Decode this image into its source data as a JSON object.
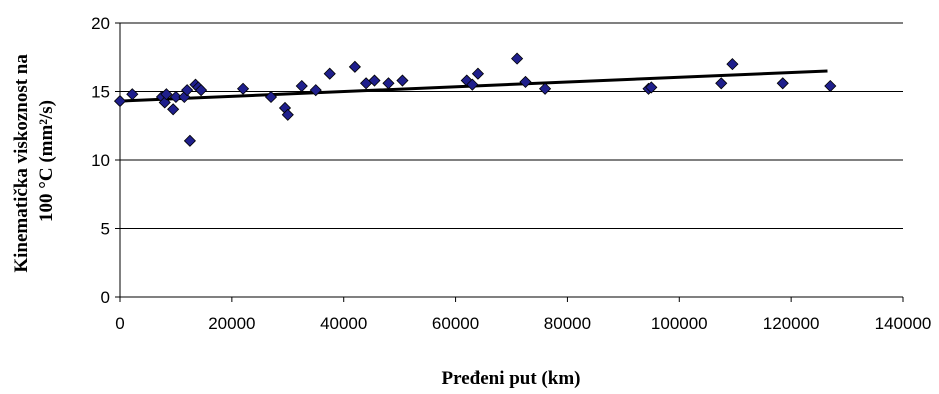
{
  "chart_data": {
    "type": "scatter",
    "title": "",
    "xlabel": "Pređeni put (km)",
    "ylabel_lines": [
      "Kinematička viskoznost na",
      "100 °C (mm²/s)"
    ],
    "xlim": [
      0,
      140000
    ],
    "ylim": [
      0,
      20
    ],
    "x_ticks": [
      0,
      20000,
      40000,
      60000,
      80000,
      100000,
      120000,
      140000
    ],
    "y_ticks": [
      0,
      5,
      10,
      15,
      20
    ],
    "grid": "horizontal",
    "marker": "diamond",
    "marker_color": "#1f1f8c",
    "line_color": "#000000",
    "points": [
      [
        0,
        14.3
      ],
      [
        2200,
        14.8
      ],
      [
        7500,
        14.6
      ],
      [
        8000,
        14.2
      ],
      [
        8300,
        14.8
      ],
      [
        9500,
        13.7
      ],
      [
        10000,
        14.6
      ],
      [
        11500,
        14.6
      ],
      [
        12000,
        15.1
      ],
      [
        12500,
        11.4
      ],
      [
        13500,
        15.5
      ],
      [
        14000,
        15.3
      ],
      [
        14500,
        15.1
      ],
      [
        22000,
        15.2
      ],
      [
        27000,
        14.6
      ],
      [
        29500,
        13.8
      ],
      [
        30000,
        13.3
      ],
      [
        32500,
        15.4
      ],
      [
        35000,
        15.1
      ],
      [
        37500,
        16.3
      ],
      [
        42000,
        16.8
      ],
      [
        44000,
        15.6
      ],
      [
        45500,
        15.8
      ],
      [
        48000,
        15.6
      ],
      [
        50500,
        15.8
      ],
      [
        62000,
        15.8
      ],
      [
        63000,
        15.5
      ],
      [
        64000,
        16.3
      ],
      [
        71000,
        17.4
      ],
      [
        72500,
        15.7
      ],
      [
        76000,
        15.2
      ],
      [
        94500,
        15.2
      ],
      [
        95000,
        15.3
      ],
      [
        107500,
        15.6
      ],
      [
        109500,
        17.0
      ],
      [
        118500,
        15.6
      ],
      [
        127000,
        15.4
      ]
    ],
    "trendline": [
      [
        0,
        14.3
      ],
      [
        126500,
        16.5
      ]
    ]
  }
}
